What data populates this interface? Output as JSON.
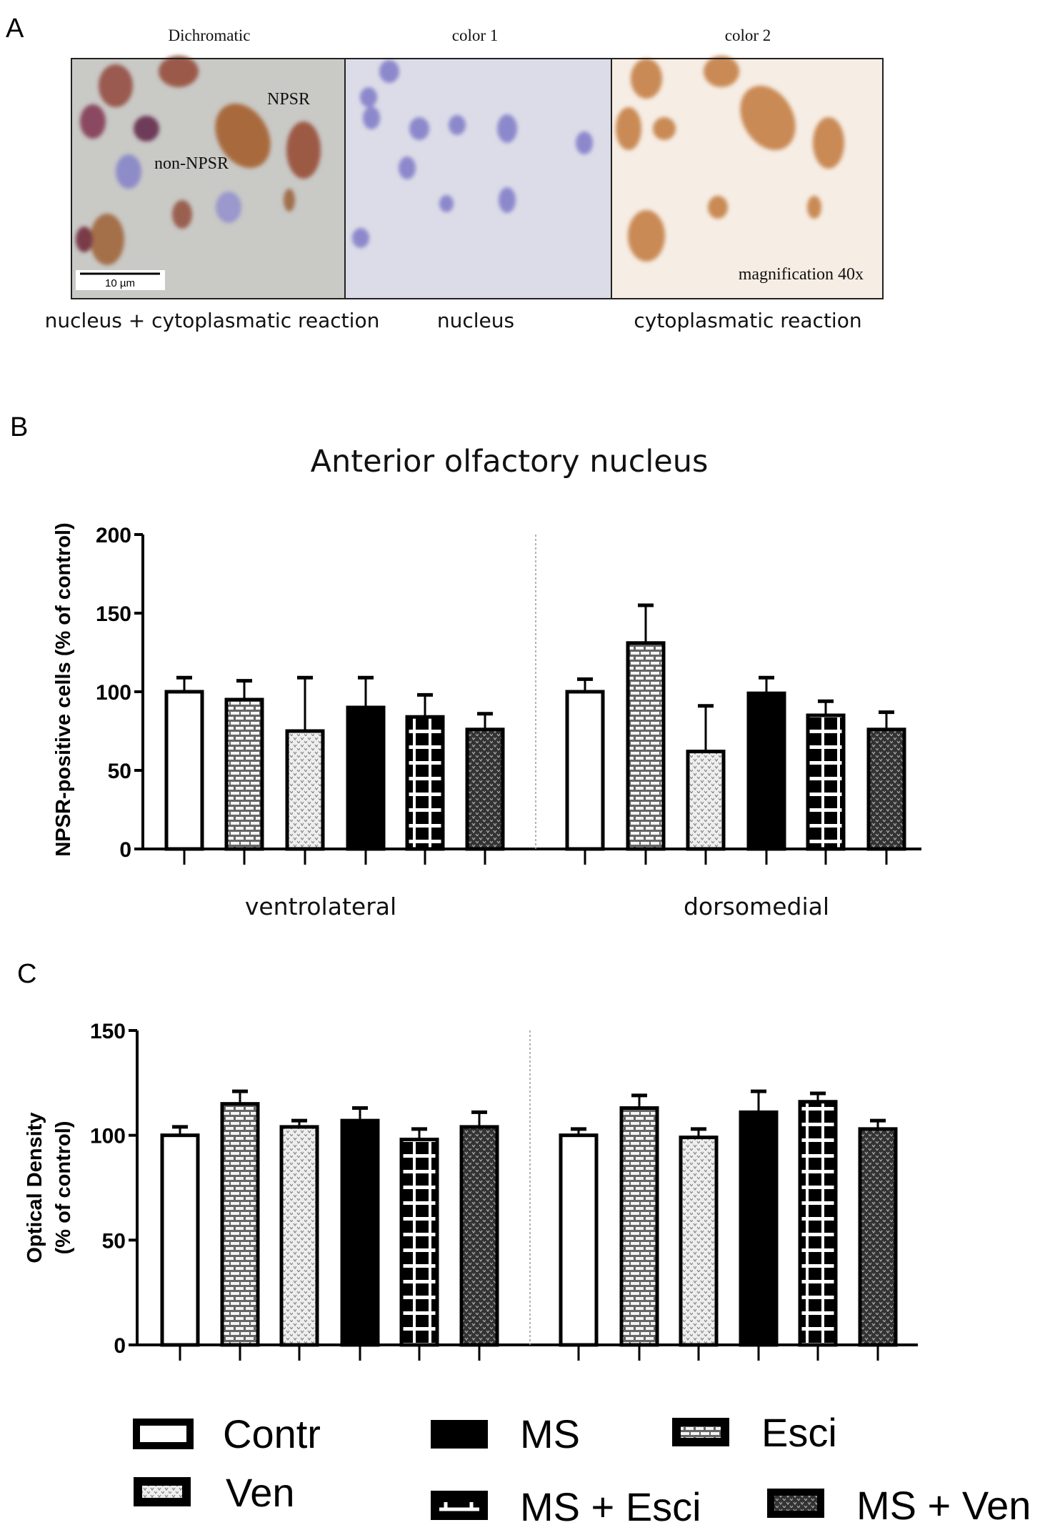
{
  "panel_a": {
    "letter": "A",
    "images": [
      {
        "top_label": "Dichromatic",
        "bottom_label": "nucleus + cytoplasmatic reaction"
      },
      {
        "top_label": "color 1",
        "bottom_label": "nucleus"
      },
      {
        "top_label": "color 2",
        "bottom_label": "cytoplasmatic reaction"
      }
    ],
    "annotations": {
      "npsr": "NPSR",
      "non_npsr": "non-NPSR",
      "scale_bar": "10 µm",
      "magnification": "magnification 40x"
    }
  },
  "legend": [
    {
      "label": "Contr",
      "pattern": "white"
    },
    {
      "label": "MS",
      "pattern": "black"
    },
    {
      "label": "Esci",
      "pattern": "brick"
    },
    {
      "label": "Ven",
      "pattern": "light-dots"
    },
    {
      "label": "MS + Esci",
      "pattern": "grid"
    },
    {
      "label": "MS + Ven",
      "pattern": "dark-dots"
    }
  ],
  "chart_data": [
    {
      "panel": "B",
      "type": "bar",
      "title": "Anterior olfactory nucleus",
      "ylabel": "NPSR-positive cells (% of control)",
      "ylim": [
        0,
        200
      ],
      "yticks": [
        0,
        50,
        100,
        150,
        200
      ],
      "groups": [
        "ventrolateral",
        "dorsomedial"
      ],
      "series_order": [
        "Contr",
        "Esci",
        "Ven",
        "MS",
        "MS + Esci",
        "MS + Ven"
      ],
      "values": [
        [
          100,
          95,
          75,
          90,
          84,
          76
        ],
        [
          100,
          131,
          62,
          99,
          85,
          76
        ]
      ],
      "errors": [
        [
          9,
          12,
          34,
          19,
          14,
          10
        ],
        [
          8,
          24,
          29,
          10,
          9,
          11
        ]
      ]
    },
    {
      "panel": "C",
      "type": "bar",
      "title": "",
      "ylabel": [
        "Optical Density",
        "(% of control)"
      ],
      "ylim": [
        0,
        150
      ],
      "yticks": [
        0,
        50,
        100,
        150
      ],
      "groups": [
        "",
        ""
      ],
      "series_order": [
        "Contr",
        "Esci",
        "Ven",
        "MS",
        "MS + Esci",
        "MS + Ven"
      ],
      "values": [
        [
          100,
          115,
          104,
          107,
          98,
          104
        ],
        [
          100,
          113,
          99,
          111,
          116,
          103
        ]
      ],
      "errors": [
        [
          4,
          6,
          3,
          6,
          5,
          7
        ],
        [
          3,
          6,
          4,
          10,
          4,
          4
        ]
      ]
    }
  ]
}
